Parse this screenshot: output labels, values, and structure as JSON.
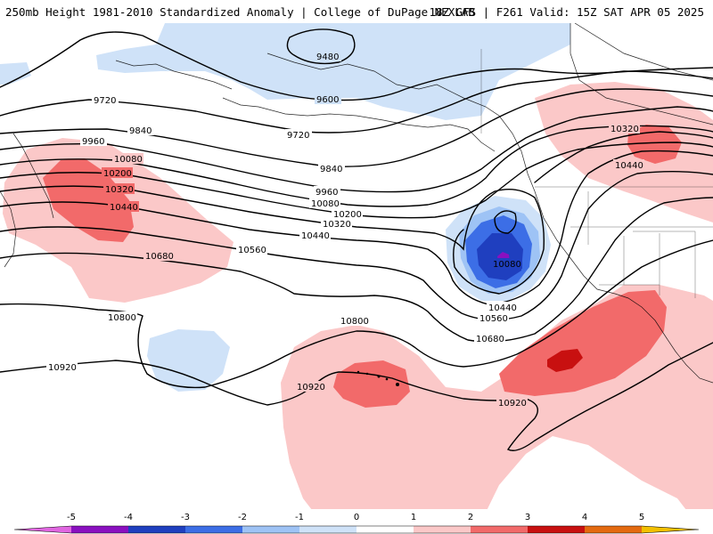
{
  "header": {
    "title_left": "250mb Height 1981-2010 Standardized Anomaly | College of DuPage NEXLAB",
    "title_right": "18Z GFS | F261 Valid: 15Z SAT APR 05 2025"
  },
  "contour_labels": [
    "9480",
    "9600",
    "9720",
    "9720",
    "9840",
    "9840",
    "9960",
    "9960",
    "10080",
    "10080",
    "10200",
    "10200",
    "10320",
    "10320",
    "10320",
    "10440",
    "10440",
    "10440",
    "10440",
    "10560",
    "10560",
    "10680",
    "10680",
    "10800",
    "10800",
    "10920",
    "10920",
    "10920"
  ],
  "colorbar": {
    "ticks": [
      "-5",
      "-4",
      "-3",
      "-2",
      "-1",
      "0",
      "1",
      "2",
      "3",
      "4",
      "5"
    ],
    "colors": {
      "bin_lt_m5": "#e066e0",
      "m5_m4": "#8a10c0",
      "m4_m3": "#1f3fbf",
      "m3_m2": "#3c6ee6",
      "m2_m1": "#9ec3f5",
      "m1_0": "#cfe2f8",
      "zero_1": "#ffffff",
      "p1_2": "#fbc8c8",
      "p2_3": "#f26a6a",
      "p3_4": "#c81010",
      "p4_5": "#e46a10",
      "gt_5": "#f2c000"
    }
  }
}
